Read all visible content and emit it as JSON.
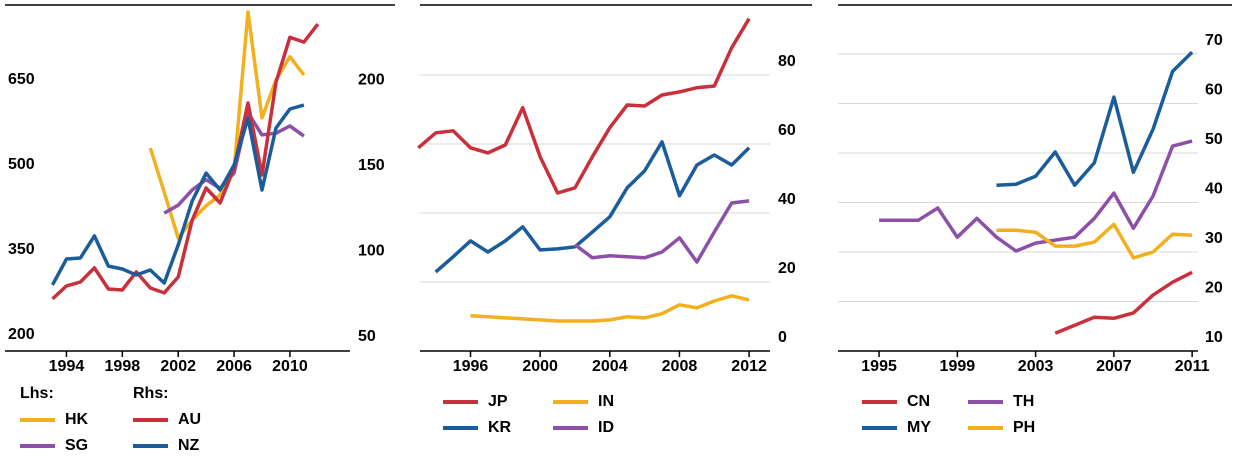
{
  "chart_data": [
    {
      "type": "line",
      "xlim": [
        1989.6,
        2014.3
      ],
      "xticks": [
        1994,
        1998,
        2002,
        2006,
        2010
      ],
      "ylim": [
        194.7,
        800
      ],
      "yticks": [
        200,
        350,
        500,
        650
      ],
      "y2lim": [
        49.4,
        249.7
      ],
      "y2ticks": [
        50,
        100,
        150,
        200
      ],
      "grid": false,
      "legend_titles": [
        "Lhs:",
        "Rhs:"
      ],
      "series": [
        {
          "name": "HK",
          "color": "#f2b01e",
          "x": [
            2000,
            2001,
            2002,
            2003,
            2004,
            2005,
            2006,
            2007,
            2008,
            2009,
            2010,
            2011
          ],
          "values": [
            553,
            475,
            394,
            426,
            451,
            470,
            514,
            793,
            606,
            673,
            714,
            682
          ]
        },
        {
          "name": "SG",
          "color": "#8d50a8",
          "x": [
            2001,
            2002,
            2003,
            2004,
            2005,
            2006,
            2007,
            2008,
            2009,
            2010,
            2011
          ],
          "values": [
            438,
            452,
            479,
            497,
            482,
            509,
            615,
            576,
            579,
            592,
            574
          ]
        },
        {
          "name": "AU",
          "color": "#c9303c",
          "axis": "y2",
          "x": [
            1993,
            1994,
            1995,
            1996,
            1997,
            1998,
            1999,
            2000,
            2001,
            2002,
            2003,
            2004,
            2005,
            2006,
            2007,
            2008,
            2009,
            2010,
            2011,
            2012
          ],
          "values": [
            79.8,
            87.4,
            89.7,
            97.9,
            85.6,
            85.0,
            95.6,
            86.2,
            83.3,
            92.6,
            125.9,
            144.6,
            135.8,
            156.4,
            194.2,
            152.2,
            206.4,
            232.6,
            229.8,
            240.3
          ]
        },
        {
          "name": "NZ",
          "color": "#1b5c9b",
          "axis": "y2",
          "x": [
            1993,
            1994,
            1995,
            1996,
            1997,
            1998,
            1999,
            2000,
            2001,
            2002,
            2003,
            2004,
            2005,
            2006,
            2007,
            2008,
            2009,
            2010,
            2011
          ],
          "values": [
            88,
            103.1,
            103.7,
            116.6,
            99,
            97.3,
            93.8,
            96.7,
            89.1,
            111.3,
            137,
            153.3,
            143.4,
            158,
            185.4,
            143.4,
            179.6,
            190.7,
            193
          ]
        }
      ]
    },
    {
      "type": "line",
      "xlim": [
        1993.1,
        2013.2
      ],
      "xticks": [
        1996,
        2000,
        2004,
        2008,
        2012
      ],
      "ylim": [
        0,
        99.4
      ],
      "yticks": [
        0,
        20,
        40,
        60,
        80
      ],
      "grid": true,
      "series": [
        {
          "name": "JP",
          "color": "#c9303c",
          "x": [
            1993,
            1994,
            1995,
            1996,
            1997,
            1998,
            1999,
            2000,
            2001,
            2002,
            2003,
            2004,
            2005,
            2006,
            2007,
            2008,
            2009,
            2010,
            2011,
            2012
          ],
          "values": [
            58.9,
            63.2,
            63.8,
            58.9,
            57.4,
            59.7,
            70.5,
            56.3,
            45.8,
            47.3,
            56.3,
            64.7,
            71.3,
            71,
            74.2,
            75.1,
            76.3,
            76.8,
            87.9,
            96.3
          ]
        },
        {
          "name": "KR",
          "color": "#1b5c9b",
          "x": [
            1994,
            1995,
            1996,
            1997,
            1998,
            1999,
            2000,
            2001,
            2002,
            2003,
            2004,
            2005,
            2006,
            2007,
            2008,
            2009,
            2010,
            2011,
            2012
          ],
          "values": [
            22.9,
            27.3,
            31.9,
            28.7,
            31.9,
            36,
            29.3,
            29.6,
            30.2,
            34.5,
            38.9,
            47.3,
            52.2,
            60.6,
            45,
            53.9,
            56.8,
            53.9,
            58.9
          ]
        },
        {
          "name": "IN",
          "color": "#f2b01e",
          "x": [
            1996,
            1997,
            1998,
            1999,
            2000,
            2001,
            2002,
            2003,
            2004,
            2005,
            2006,
            2007,
            2008,
            2009,
            2010,
            2011,
            2012
          ],
          "values": [
            10.2,
            9.9,
            9.6,
            9.3,
            9,
            8.7,
            8.7,
            8.7,
            9,
            9.9,
            9.6,
            10.8,
            13.4,
            12.5,
            14.5,
            16,
            14.8
          ]
        },
        {
          "name": "ID",
          "color": "#8d50a8",
          "x": [
            2002,
            2003,
            2004,
            2005,
            2006,
            2007,
            2008,
            2009,
            2010,
            2011,
            2012
          ],
          "values": [
            30.8,
            27,
            27.6,
            27.3,
            27,
            28.7,
            32.8,
            25.8,
            34.5,
            42.9,
            43.5
          ]
        }
      ]
    },
    {
      "type": "line",
      "xlim": [
        1992.9,
        2011.3
      ],
      "xticks": [
        1995,
        1999,
        2003,
        2007,
        2011
      ],
      "ylim": [
        10,
        79.3
      ],
      "yticks": [
        10,
        20,
        30,
        40,
        50,
        60,
        70
      ],
      "grid": true,
      "series": [
        {
          "name": "CN",
          "color": "#c9303c",
          "x": [
            2004,
            2005,
            2006,
            2007,
            2008,
            2009,
            2010,
            2011
          ],
          "values": [
            13.6,
            15.2,
            16.8,
            16.6,
            17.7,
            21.3,
            23.9,
            25.9
          ]
        },
        {
          "name": "MY",
          "color": "#1b5c9b",
          "x": [
            2001,
            2002,
            2003,
            2004,
            2005,
            2006,
            2007,
            2008,
            2009,
            2010,
            2011
          ],
          "values": [
            43.5,
            43.7,
            45.3,
            50.2,
            43.5,
            48,
            61.3,
            46.1,
            54.8,
            66.5,
            70.4
          ]
        },
        {
          "name": "TH",
          "color": "#8d50a8",
          "x": [
            1995,
            1996,
            1997,
            1998,
            1999,
            2000,
            2001,
            2002,
            2003,
            2004,
            2005,
            2006,
            2007,
            2008,
            2009,
            2010,
            2011
          ],
          "values": [
            36.4,
            36.4,
            36.4,
            38.9,
            33,
            36.8,
            33,
            30.2,
            31.8,
            32.4,
            33,
            36.8,
            41.9,
            34.8,
            41.3,
            51.4,
            52.4
          ]
        },
        {
          "name": "PH",
          "color": "#f2b01e",
          "x": [
            2001,
            2002,
            2003,
            2004,
            2005,
            2006,
            2007,
            2008,
            2009,
            2010,
            2011
          ],
          "values": [
            34.4,
            34.4,
            34,
            31.2,
            31.2,
            32,
            35.6,
            28.8,
            30,
            33.6,
            33.4
          ]
        }
      ]
    }
  ]
}
